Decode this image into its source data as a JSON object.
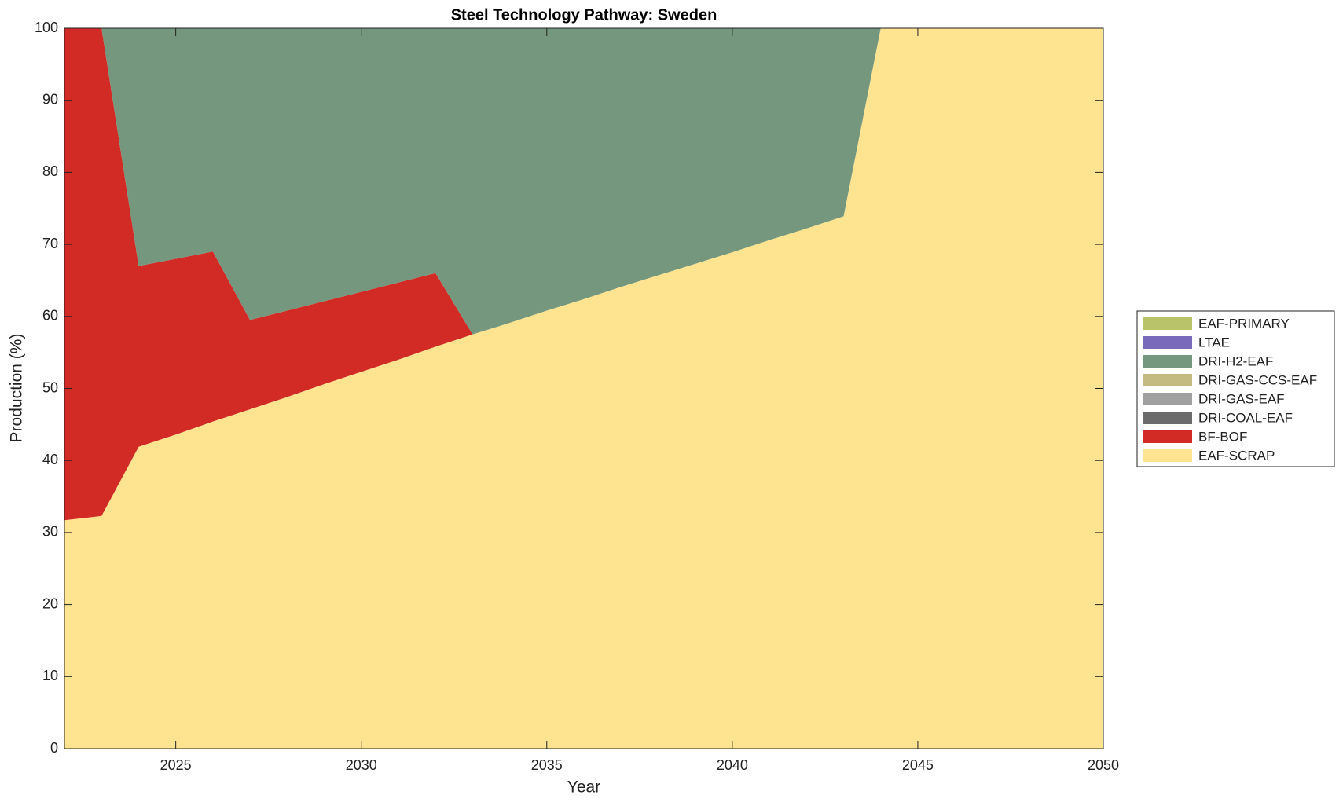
{
  "chart_data": {
    "type": "stacked-area",
    "title": "Steel Technology Pathway: Sweden",
    "x_label": "Year",
    "y_label": "Production (%)",
    "x": [
      2022,
      2023,
      2024,
      2025,
      2026,
      2027,
      2028,
      2029,
      2030,
      2031,
      2032,
      2033,
      2034,
      2035,
      2036,
      2037,
      2038,
      2039,
      2040,
      2041,
      2042,
      2043,
      2044,
      2045,
      2046,
      2047,
      2048,
      2049,
      2050
    ],
    "xlim": [
      2022,
      2050
    ],
    "xticks": [
      2025,
      2030,
      2035,
      2040,
      2045,
      2050
    ],
    "ylim": [
      0,
      100
    ],
    "yticks": [
      0,
      10,
      20,
      30,
      40,
      50,
      60,
      70,
      80,
      90,
      100
    ],
    "legend_position": "right",
    "series": [
      {
        "name": "EAF-SCRAP",
        "color": "#fee391",
        "values": [
          31.7,
          32.3,
          41.9,
          43.6,
          45.4,
          47.1,
          48.8,
          50.6,
          52.3,
          54.0,
          55.8,
          57.5,
          59.1,
          60.8,
          62.4,
          64.1,
          65.7,
          67.3,
          68.9,
          70.6,
          72.2,
          73.9,
          100,
          100,
          100,
          100,
          100,
          100,
          100
        ]
      },
      {
        "name": "BF-BOF",
        "color": "#d22a25",
        "values": [
          68.3,
          67.7,
          25.1,
          24.4,
          23.6,
          12.4,
          12.0,
          11.5,
          11.1,
          10.7,
          10.2,
          0,
          0,
          0,
          0,
          0,
          0,
          0,
          0,
          0,
          0,
          0,
          0,
          0,
          0,
          0,
          0,
          0,
          0
        ]
      },
      {
        "name": "DRI-COAL-EAF",
        "color": "#6b6b6b",
        "values": [
          0,
          0,
          0,
          0,
          0,
          0,
          0,
          0,
          0,
          0,
          0,
          0,
          0,
          0,
          0,
          0,
          0,
          0,
          0,
          0,
          0,
          0,
          0,
          0,
          0,
          0,
          0,
          0,
          0
        ]
      },
      {
        "name": "DRI-GAS-EAF",
        "color": "#a0a0a0",
        "values": [
          0,
          0,
          0,
          0,
          0,
          0,
          0,
          0,
          0,
          0,
          0,
          0,
          0,
          0,
          0,
          0,
          0,
          0,
          0,
          0,
          0,
          0,
          0,
          0,
          0,
          0,
          0,
          0,
          0
        ]
      },
      {
        "name": "DRI-GAS-CCS-EAF",
        "color": "#c4bb82",
        "values": [
          0,
          0,
          0,
          0,
          0,
          0,
          0,
          0,
          0,
          0,
          0,
          0,
          0,
          0,
          0,
          0,
          0,
          0,
          0,
          0,
          0,
          0,
          0,
          0,
          0,
          0,
          0,
          0,
          0
        ]
      },
      {
        "name": "DRI-H2-EAF",
        "color": "#74977d",
        "values": [
          0,
          0,
          33,
          32,
          31,
          40.5,
          39.2,
          37.9,
          36.6,
          35.3,
          34,
          42.5,
          40.9,
          39.2,
          37.6,
          35.9,
          34.3,
          32.7,
          31.1,
          29.4,
          27.8,
          26.1,
          0,
          0,
          0,
          0,
          0,
          0,
          0
        ]
      },
      {
        "name": "LTAE",
        "color": "#7a6abc",
        "values": [
          0,
          0,
          0,
          0,
          0,
          0,
          0,
          0,
          0,
          0,
          0,
          0,
          0,
          0,
          0,
          0,
          0,
          0,
          0,
          0,
          0,
          0,
          0,
          0,
          0,
          0,
          0,
          0,
          0
        ]
      },
      {
        "name": "EAF-PRIMARY",
        "color": "#b9c46a",
        "values": [
          0,
          0,
          0,
          0,
          0,
          0,
          0,
          0,
          0,
          0,
          0,
          0,
          0,
          0,
          0,
          0,
          0,
          0,
          0,
          0,
          0,
          0,
          0,
          0,
          0,
          0,
          0,
          0,
          0
        ]
      }
    ]
  }
}
